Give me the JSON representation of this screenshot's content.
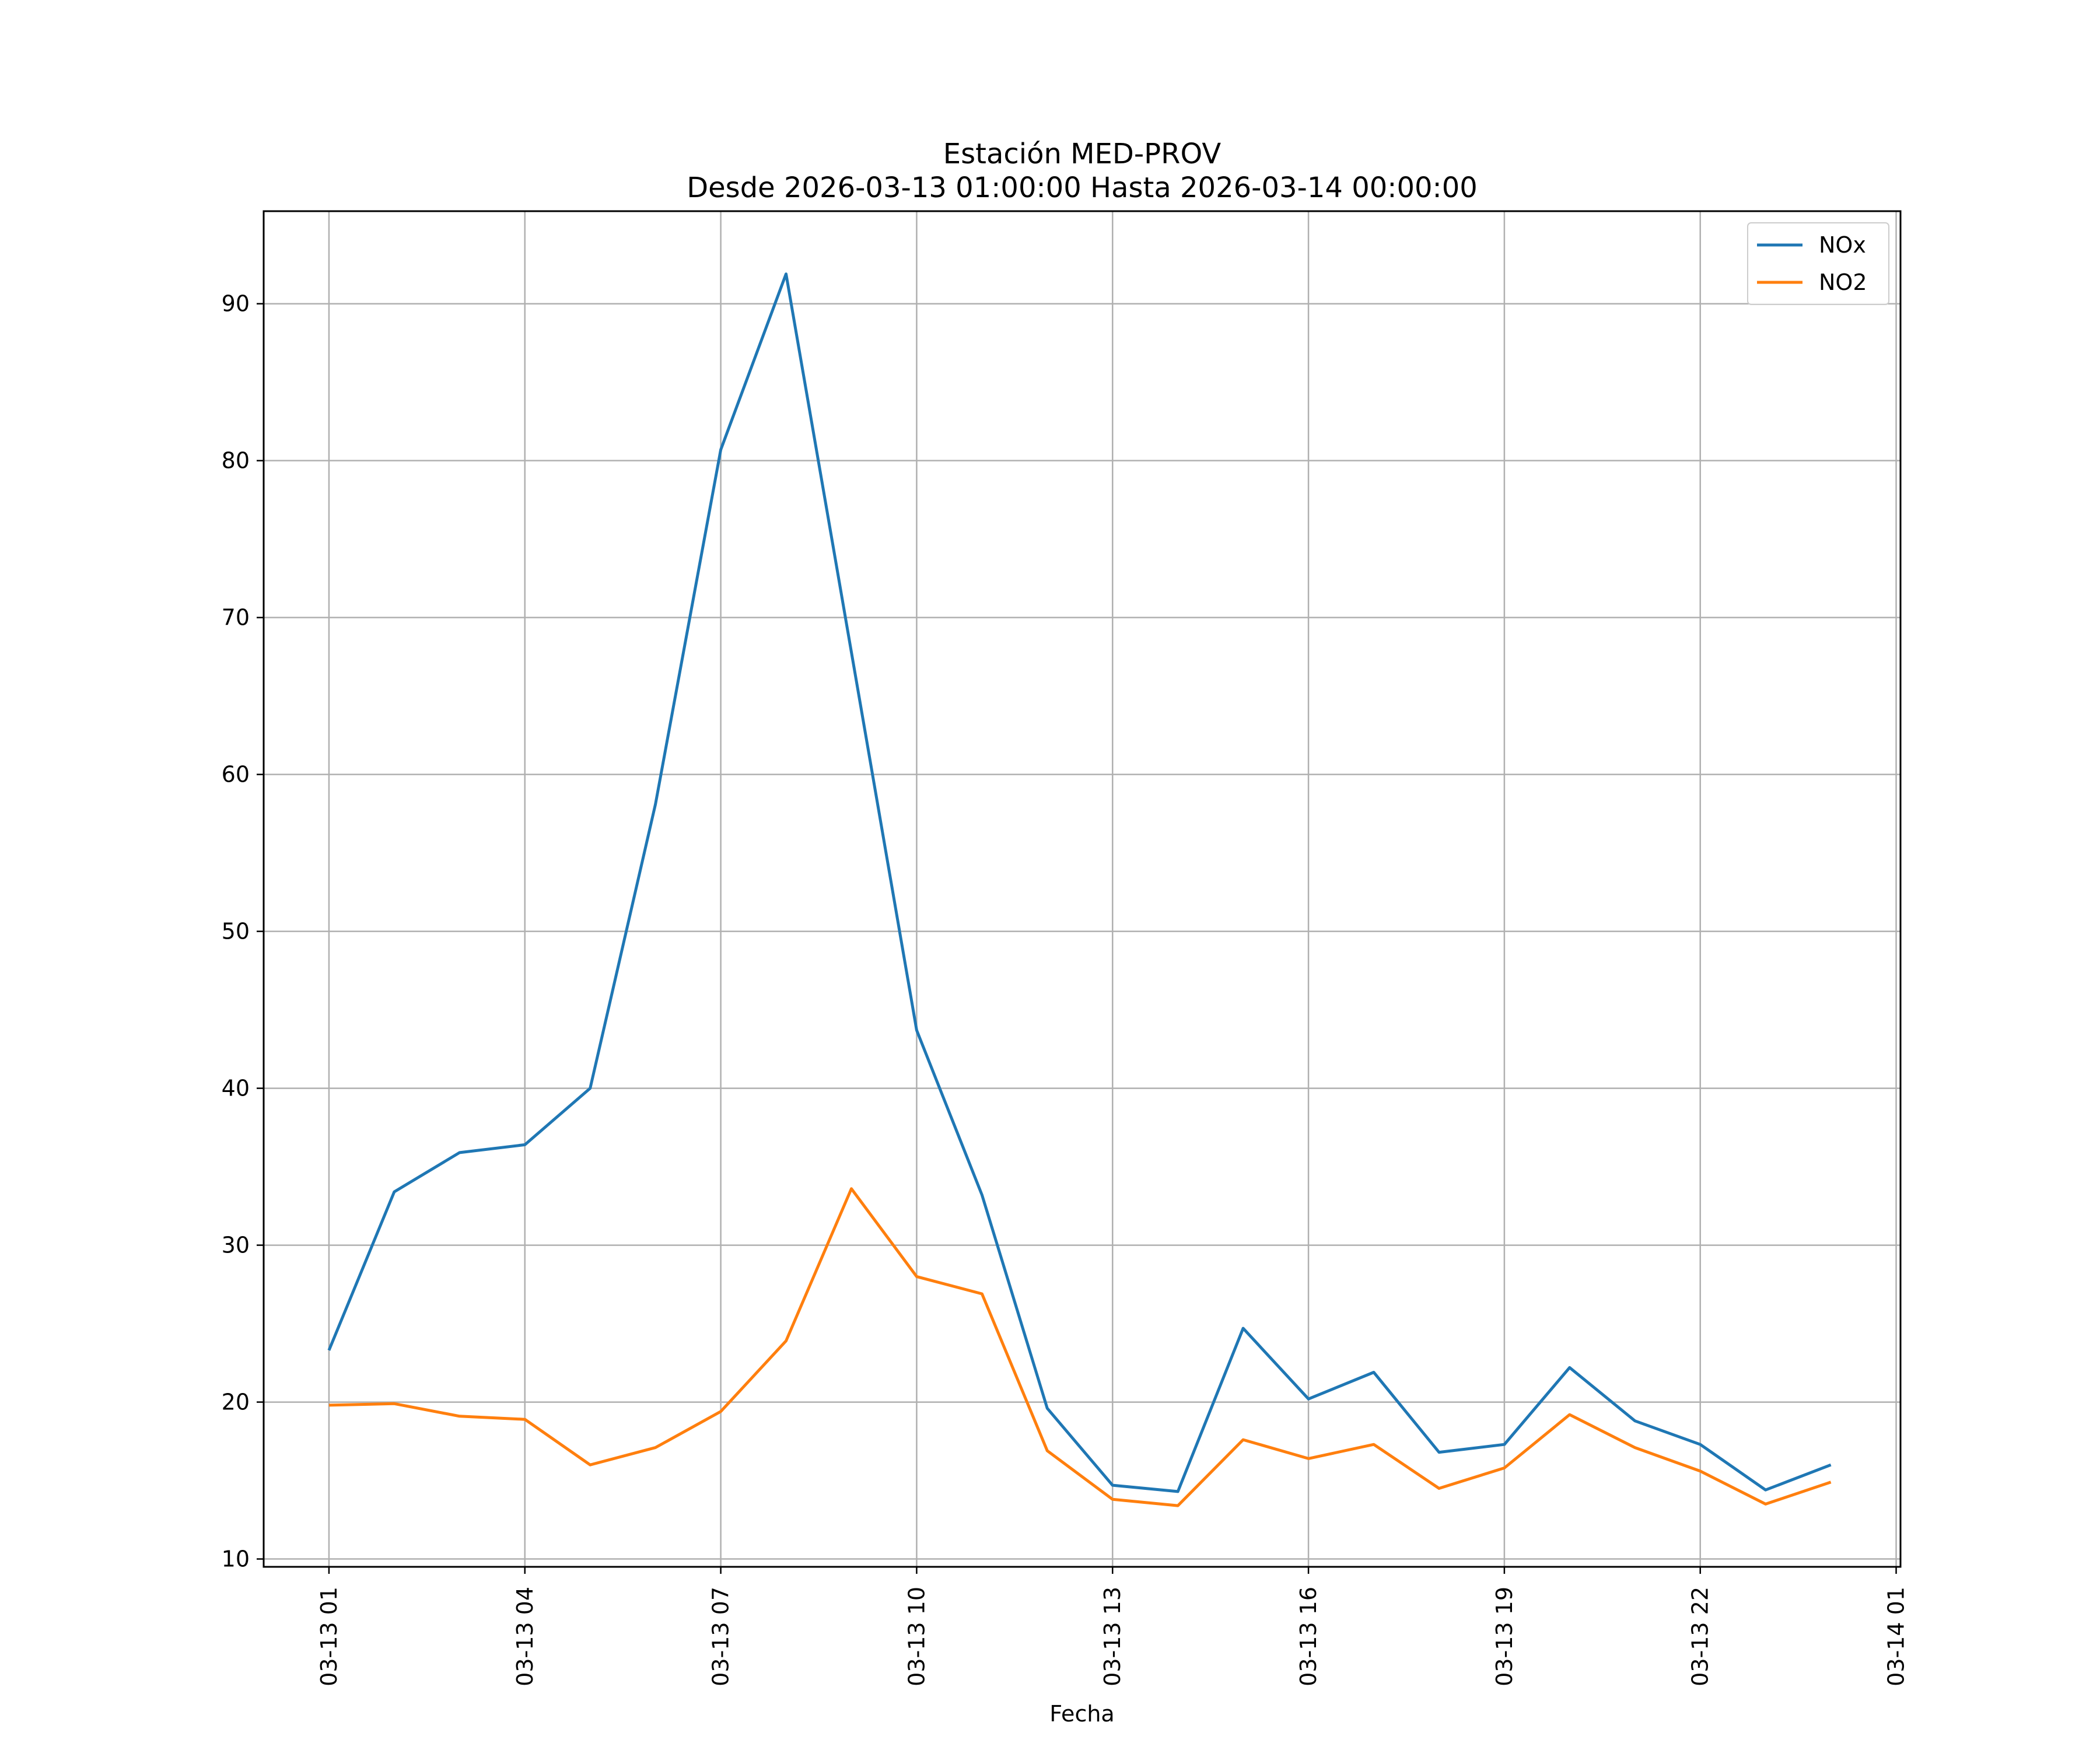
{
  "chart_data": {
    "type": "line",
    "title": "Estación MED-PROV",
    "subtitle": "Desde 2026-03-13 01:00:00 Hasta 2026-03-14 00:00:00",
    "xlabel": "Fecha",
    "ylabel": "",
    "x": [
      "2026-03-13 01:00",
      "2026-03-13 02:00",
      "2026-03-13 03:00",
      "2026-03-13 04:00",
      "2026-03-13 05:00",
      "2026-03-13 06:00",
      "2026-03-13 07:00",
      "2026-03-13 08:00",
      "2026-03-13 09:00",
      "2026-03-13 10:00",
      "2026-03-13 11:00",
      "2026-03-13 12:00",
      "2026-03-13 13:00",
      "2026-03-13 14:00",
      "2026-03-13 15:00",
      "2026-03-13 16:00",
      "2026-03-13 17:00",
      "2026-03-13 18:00",
      "2026-03-13 19:00",
      "2026-03-13 20:00",
      "2026-03-13 21:00",
      "2026-03-13 22:00",
      "2026-03-13 23:00",
      "2026-03-14 00:00"
    ],
    "xlim": [
      "2026-03-13 00:00",
      "2026-03-14 01:04"
    ],
    "ylim": [
      9.5,
      95.9
    ],
    "x_ticks": [
      "03-13 01",
      "03-13 04",
      "03-13 07",
      "03-13 10",
      "03-13 13",
      "03-13 16",
      "03-13 19",
      "03-13 22",
      "03-14 01"
    ],
    "y_ticks": [
      10,
      20,
      30,
      40,
      50,
      60,
      70,
      80,
      90
    ],
    "grid": true,
    "legend_position": "top-right",
    "series": [
      {
        "name": "NOx",
        "color": "#1f77b4",
        "values": [
          23.3,
          33.4,
          35.9,
          36.4,
          40.0,
          58.1,
          80.7,
          91.9,
          67.8,
          43.7,
          33.2,
          19.6,
          14.7,
          14.3,
          24.7,
          20.2,
          21.9,
          16.8,
          17.3,
          22.2,
          18.8,
          17.3,
          14.4,
          16.0
        ]
      },
      {
        "name": "NO2",
        "color": "#ff7f0e",
        "values": [
          19.8,
          19.9,
          19.1,
          18.9,
          16.0,
          17.1,
          19.4,
          23.9,
          33.6,
          28.0,
          26.9,
          16.9,
          13.8,
          13.4,
          17.6,
          16.4,
          17.3,
          14.5,
          15.8,
          19.2,
          17.1,
          15.6,
          13.5,
          14.9
        ]
      }
    ]
  }
}
